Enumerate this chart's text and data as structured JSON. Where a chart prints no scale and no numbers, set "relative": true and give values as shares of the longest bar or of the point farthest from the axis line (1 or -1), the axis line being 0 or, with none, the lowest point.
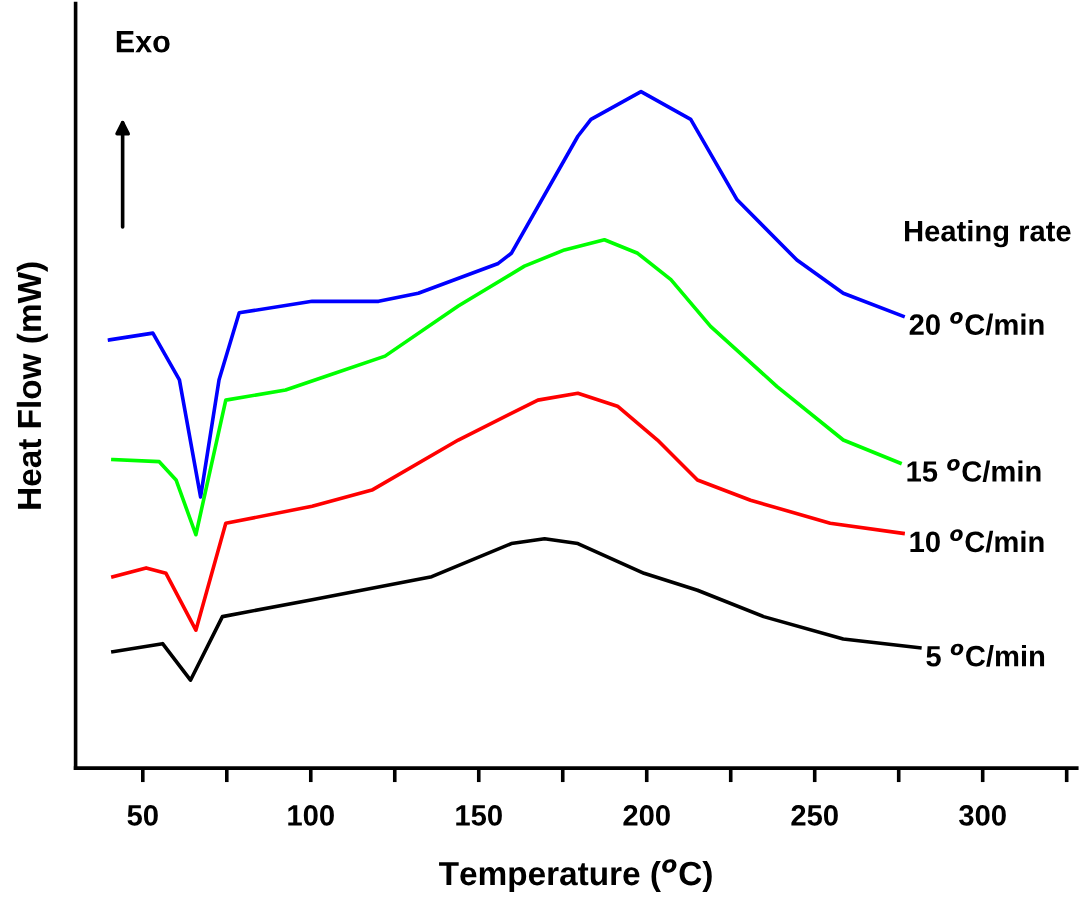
{
  "chart_data": {
    "type": "line",
    "relative": true,
    "xlabel": "Temperature ($^{o}$C)",
    "ylabel": "Heat Flow (mW)",
    "legend_title": "Heating rate",
    "annotations": [
      "Exo"
    ],
    "xlim": [
      30,
      328
    ],
    "xticks": [
      50,
      {
        "value": 75,
        "label": null
      },
      100,
      {
        "value": 125,
        "label": null
      },
      150,
      {
        "value": 175,
        "label": null
      },
      200,
      {
        "value": 225,
        "label": null
      },
      250,
      {
        "value": 275,
        "label": null
      },
      300,
      {
        "value": 325,
        "label": null
      }
    ],
    "grid": false,
    "legend": false,
    "marker": "none",
    "line_style": "solid",
    "series": [
      {
        "name": "20 $^{o}$C/min",
        "color": "#0000ff",
        "x": [
          40.1,
          53,
          60.9,
          67.2,
          72.7,
          78.7,
          100.4,
          120.2,
          132,
          155.8,
          159.7,
          179.5,
          183.4,
          198.3,
          213.1,
          226.9,
          244.7,
          258.5,
          276.3
        ],
        "values": [
          0.633,
          0.643,
          0.574,
          0.401,
          0.574,
          0.673,
          0.69,
          0.69,
          0.702,
          0.746,
          0.761,
          0.934,
          0.959,
          1.0,
          0.959,
          0.84,
          0.751,
          0.702,
          0.668
        ]
      },
      {
        "name": "15 $^{o}$C/min",
        "color": "#00ff00",
        "x": [
          41.1,
          54.9,
          59.9,
          65.8,
          74.7,
          92.5,
          104.3,
          122.1,
          143.9,
          163.6,
          175.5,
          187.4,
          197.3,
          207.2,
          219.0,
          238.8,
          258.5,
          275.4
        ],
        "values": [
          0.456,
          0.453,
          0.426,
          0.345,
          0.544,
          0.559,
          0.579,
          0.609,
          0.683,
          0.742,
          0.766,
          0.781,
          0.761,
          0.722,
          0.653,
          0.564,
          0.485,
          0.451
        ]
      },
      {
        "name": "10 $^{o}$C/min",
        "color": "#ff0000",
        "x": [
          41.1,
          51,
          56.9,
          65.8,
          74.7,
          100.4,
          118.2,
          143.9,
          167.6,
          179.5,
          191.3,
          203.2,
          215.1,
          230.9,
          254.6,
          276.3
        ],
        "values": [
          0.283,
          0.296,
          0.288,
          0.204,
          0.362,
          0.387,
          0.411,
          0.485,
          0.544,
          0.554,
          0.535,
          0.485,
          0.426,
          0.396,
          0.362,
          0.347
        ]
      },
      {
        "name": "5 $^{o}$C/min",
        "color": "#000000",
        "x": [
          41.1,
          55.9,
          64.2,
          73.7,
          100.4,
          136,
          159.7,
          169.6,
          179.5,
          199.2,
          215.1,
          234.8,
          258.5,
          281.3
        ],
        "values": [
          0.172,
          0.184,
          0.13,
          0.224,
          0.249,
          0.283,
          0.332,
          0.339,
          0.332,
          0.288,
          0.263,
          0.224,
          0.191,
          0.178
        ]
      }
    ]
  }
}
